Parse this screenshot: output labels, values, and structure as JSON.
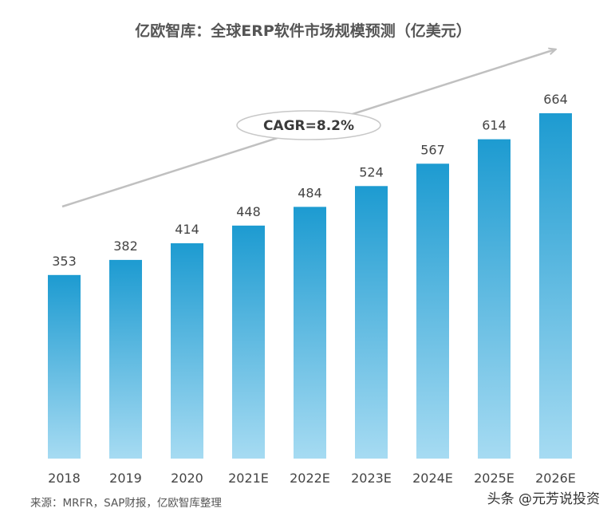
{
  "chart_data": {
    "type": "bar",
    "title": "亿欧智库：全球ERP软件市场规模预测（亿美元）",
    "categories": [
      "2018",
      "2019",
      "2020",
      "2021E",
      "2022E",
      "2023E",
      "2024E",
      "2025E",
      "2026E"
    ],
    "values": [
      353,
      382,
      414,
      448,
      484,
      524,
      567,
      614,
      664
    ],
    "ylim": [
      0,
      700
    ],
    "xlabel": "",
    "ylabel": "",
    "grid": false,
    "annotation": "CAGR=8.2%",
    "colors": {
      "bar_top": "#1d9bd1",
      "bar_bottom": "#a6dbf2",
      "arrow": "#c0c0c0"
    }
  },
  "source": "来源：MRFR，SAP财报，亿欧智库整理",
  "watermark": "头条 @元芳说投资"
}
